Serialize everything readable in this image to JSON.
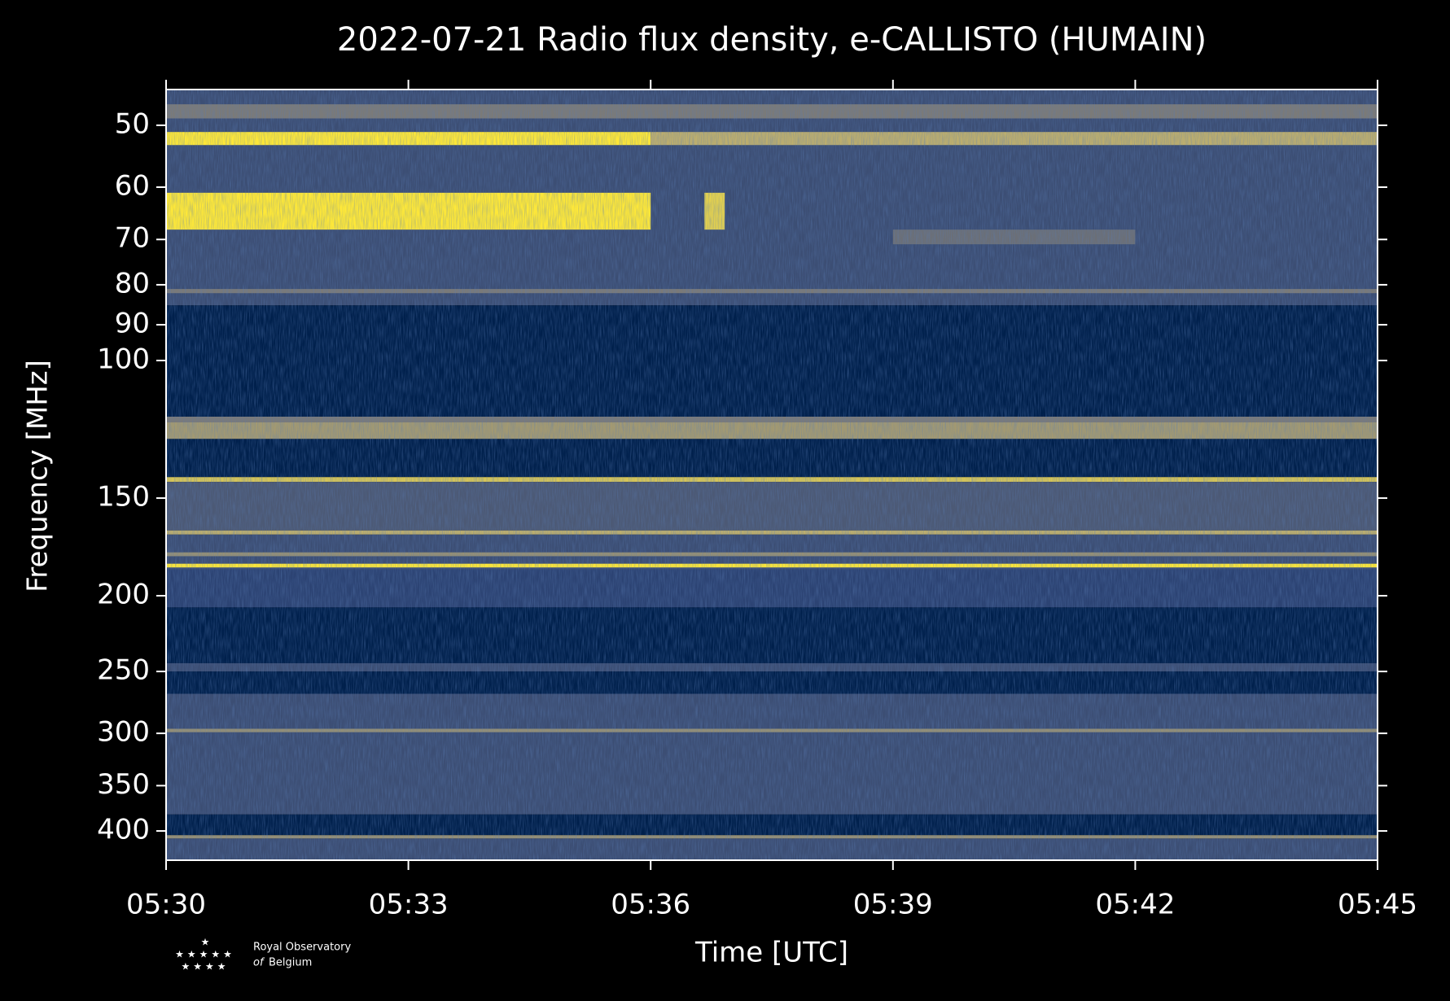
{
  "chart_data": {
    "type": "spectrogram",
    "title": "2022-07-21 Radio flux density, e-CALLISTO (HUMAIN)",
    "xlabel": "Time [UTC]",
    "ylabel": "Frequency [MHz]",
    "xlim": [
      "05:30",
      "05:45"
    ],
    "xticks": [
      "05:30",
      "05:33",
      "05:36",
      "05:39",
      "05:42",
      "05:45"
    ],
    "ylim": [
      45,
      436
    ],
    "yticks": [
      50,
      60,
      70,
      80,
      90,
      100,
      150,
      200,
      250,
      300,
      350,
      400
    ],
    "y_log": true,
    "y_inverted": true,
    "colormap": [
      "#00204c",
      "#2c4373",
      "#7b7a78",
      "#bcae6e",
      "#fee838"
    ],
    "bands": [
      {
        "freq": [
          45,
          85
        ],
        "level": 0.3
      },
      {
        "freq": [
          47,
          49
        ],
        "level": 0.5
      },
      {
        "freq": [
          51,
          53
        ],
        "level": 1.0,
        "time": [
          "05:30",
          "05:36"
        ]
      },
      {
        "freq": [
          51,
          53
        ],
        "level": 0.75,
        "time": [
          "05:36",
          "05:45"
        ]
      },
      {
        "freq": [
          61,
          68
        ],
        "level": 1.0,
        "time": [
          "05:30",
          "05:36"
        ]
      },
      {
        "freq": [
          61,
          68
        ],
        "level": 0.9,
        "time": [
          "05:36:40",
          "05:36:55"
        ]
      },
      {
        "freq": [
          68,
          71
        ],
        "level": 0.45,
        "time": [
          "05:39",
          "05:42"
        ]
      },
      {
        "freq": [
          81,
          82
        ],
        "level": 0.5
      },
      {
        "freq": [
          85,
          118
        ],
        "level": 0.0
      },
      {
        "freq": [
          118,
          120
        ],
        "level": 0.5
      },
      {
        "freq": [
          120,
          126
        ],
        "level": 0.65
      },
      {
        "freq": [
          126,
          141
        ],
        "level": 0.0
      },
      {
        "freq": [
          141,
          143
        ],
        "level": 0.85
      },
      {
        "freq": [
          143,
          165
        ],
        "level": 0.35
      },
      {
        "freq": [
          165,
          167
        ],
        "level": 0.75
      },
      {
        "freq": [
          167,
          185
        ],
        "level": 0.3
      },
      {
        "freq": [
          176,
          178
        ],
        "level": 0.6
      },
      {
        "freq": [
          182,
          184
        ],
        "level": 1.0
      },
      {
        "freq": [
          185,
          207
        ],
        "level": 0.25
      },
      {
        "freq": [
          207,
          244
        ],
        "level": 0.0
      },
      {
        "freq": [
          244,
          250
        ],
        "level": 0.3
      },
      {
        "freq": [
          250,
          267
        ],
        "level": 0.0
      },
      {
        "freq": [
          267,
          381
        ],
        "level": 0.3
      },
      {
        "freq": [
          296,
          299
        ],
        "level": 0.6
      },
      {
        "freq": [
          381,
          405
        ],
        "level": 0.0
      },
      {
        "freq": [
          405,
          409
        ],
        "level": 0.6
      },
      {
        "freq": [
          409,
          436
        ],
        "level": 0.3
      }
    ],
    "logo": {
      "line1": "Royal Observatory",
      "line2_italic": "of",
      "line2": "Belgium"
    }
  }
}
